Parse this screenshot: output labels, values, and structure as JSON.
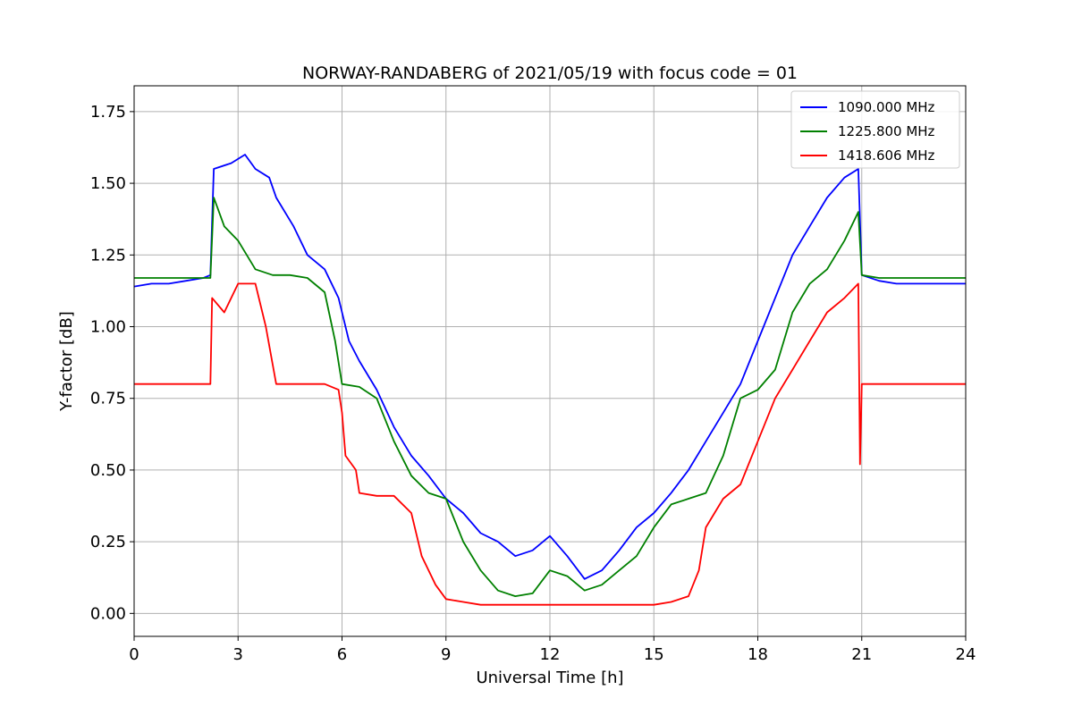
{
  "chart_data": {
    "type": "line",
    "title": "NORWAY-RANDABERG of 2021/05/19 with focus code = 01",
    "xlabel": "Universal Time [h]",
    "ylabel": "Y-factor [dB]",
    "xlim": [
      0,
      24
    ],
    "ylim": [
      -0.08,
      1.84
    ],
    "xticks": [
      0,
      3,
      6,
      9,
      12,
      15,
      18,
      21,
      24
    ],
    "xtick_labels": [
      "0",
      "3",
      "6",
      "9",
      "12",
      "15",
      "18",
      "21",
      "24"
    ],
    "yticks": [
      0.0,
      0.25,
      0.5,
      0.75,
      1.0,
      1.25,
      1.5,
      1.75
    ],
    "ytick_labels": [
      "0.00",
      "0.25",
      "0.50",
      "0.75",
      "1.00",
      "1.25",
      "1.50",
      "1.75"
    ],
    "grid": true,
    "legend_position": "top-right",
    "series": [
      {
        "name": "1090.000 MHz",
        "color": "#0000ff",
        "x": [
          0,
          0.5,
          1,
          1.5,
          2,
          2.2,
          2.3,
          2.8,
          3.2,
          3.5,
          3.9,
          4.1,
          4.6,
          5,
          5.5,
          5.9,
          6.2,
          6.5,
          7,
          7.5,
          8,
          8.5,
          9,
          9.5,
          10,
          10.5,
          11,
          11.5,
          12,
          12.5,
          13,
          13.5,
          14,
          14.5,
          15,
          15.5,
          16,
          16.5,
          17,
          17.5,
          18,
          18.5,
          19,
          19.5,
          20,
          20.5,
          20.9,
          21,
          21.5,
          22,
          23,
          24
        ],
        "y": [
          1.14,
          1.15,
          1.15,
          1.16,
          1.17,
          1.18,
          1.55,
          1.57,
          1.6,
          1.55,
          1.52,
          1.45,
          1.35,
          1.25,
          1.2,
          1.1,
          0.95,
          0.88,
          0.78,
          0.65,
          0.55,
          0.48,
          0.4,
          0.35,
          0.28,
          0.25,
          0.2,
          0.22,
          0.27,
          0.2,
          0.12,
          0.15,
          0.22,
          0.3,
          0.35,
          0.42,
          0.5,
          0.6,
          0.7,
          0.8,
          0.95,
          1.1,
          1.25,
          1.35,
          1.45,
          1.52,
          1.55,
          1.18,
          1.16,
          1.15,
          1.15,
          1.15
        ]
      },
      {
        "name": "1225.800 MHz",
        "color": "#008000",
        "x": [
          0,
          0.5,
          1,
          1.5,
          2,
          2.2,
          2.3,
          2.6,
          3,
          3.5,
          4,
          4.5,
          5,
          5.5,
          5.8,
          6,
          6.5,
          7,
          7.5,
          8,
          8.5,
          9,
          9.5,
          10,
          10.5,
          11,
          11.5,
          12,
          12.5,
          13,
          13.5,
          14,
          14.5,
          15,
          15.5,
          16,
          16.5,
          17,
          17.5,
          18,
          18.5,
          19,
          19.5,
          20,
          20.5,
          20.9,
          21,
          21.5,
          22,
          23,
          24
        ],
        "y": [
          1.17,
          1.17,
          1.17,
          1.17,
          1.17,
          1.17,
          1.45,
          1.35,
          1.3,
          1.2,
          1.18,
          1.18,
          1.17,
          1.12,
          0.95,
          0.8,
          0.79,
          0.75,
          0.6,
          0.48,
          0.42,
          0.4,
          0.25,
          0.15,
          0.08,
          0.06,
          0.07,
          0.15,
          0.13,
          0.08,
          0.1,
          0.15,
          0.2,
          0.3,
          0.38,
          0.4,
          0.42,
          0.55,
          0.75,
          0.78,
          0.85,
          1.05,
          1.15,
          1.2,
          1.3,
          1.4,
          1.18,
          1.17,
          1.17,
          1.17,
          1.17
        ]
      },
      {
        "name": "1418.606 MHz",
        "color": "#ff0000",
        "x": [
          0,
          0.5,
          1,
          1.5,
          2,
          2.2,
          2.25,
          2.6,
          3,
          3.5,
          3.8,
          4.1,
          4.5,
          5,
          5.5,
          5.9,
          6,
          6.1,
          6.4,
          6.5,
          7,
          7.5,
          8,
          8.3,
          8.7,
          9,
          9.5,
          10,
          11,
          12,
          13,
          14,
          15,
          15.5,
          16,
          16.3,
          16.5,
          17,
          17.5,
          18,
          18.5,
          19,
          19.5,
          20,
          20.5,
          20.9,
          20.95,
          21.0,
          21.5,
          22,
          23,
          24
        ],
        "y": [
          0.8,
          0.8,
          0.8,
          0.8,
          0.8,
          0.8,
          1.1,
          1.05,
          1.15,
          1.15,
          1.0,
          0.8,
          0.8,
          0.8,
          0.8,
          0.78,
          0.7,
          0.55,
          0.5,
          0.42,
          0.41,
          0.41,
          0.35,
          0.2,
          0.1,
          0.05,
          0.04,
          0.03,
          0.03,
          0.03,
          0.03,
          0.03,
          0.03,
          0.04,
          0.06,
          0.15,
          0.3,
          0.4,
          0.45,
          0.6,
          0.75,
          0.85,
          0.95,
          1.05,
          1.1,
          1.15,
          0.52,
          0.8,
          0.8,
          0.8,
          0.8,
          0.8
        ]
      }
    ]
  }
}
